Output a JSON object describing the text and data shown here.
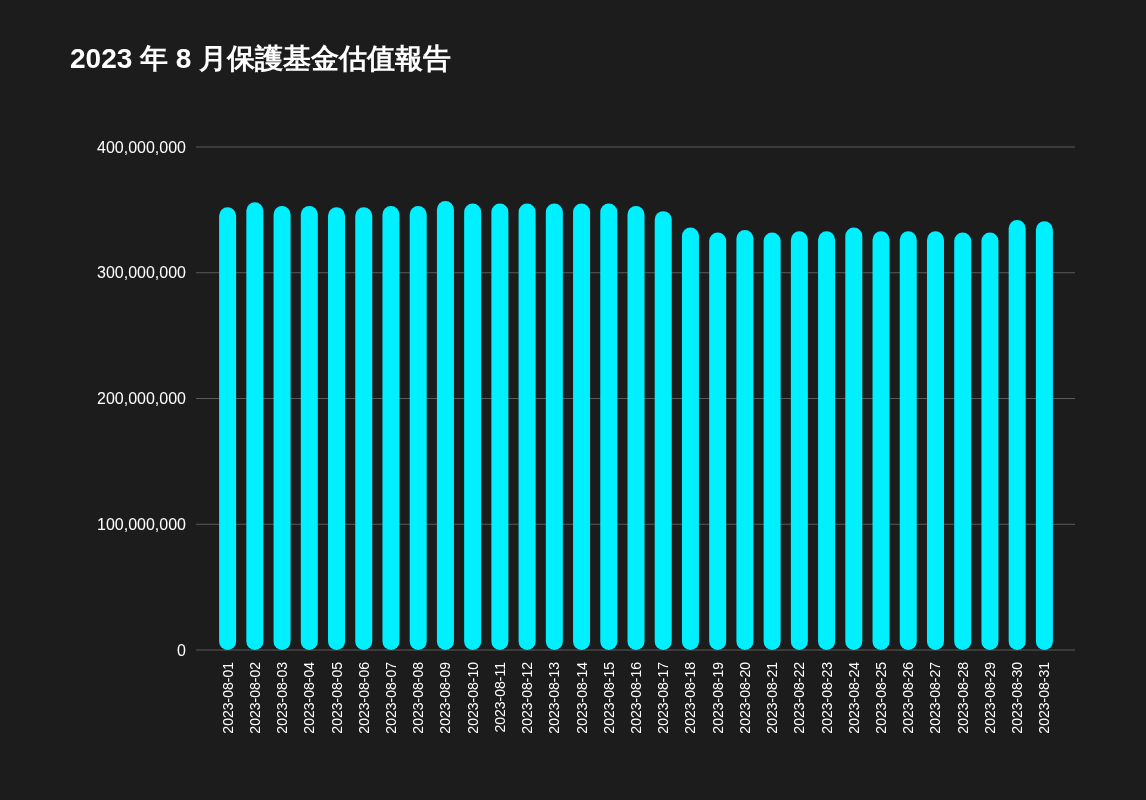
{
  "chart_data": {
    "type": "bar",
    "title": "2023 年 8 月保護基金估值報告",
    "categories": [
      "2023-08-01",
      "2023-08-02",
      "2023-08-03",
      "2023-08-04",
      "2023-08-05",
      "2023-08-06",
      "2023-08-07",
      "2023-08-08",
      "2023-08-09",
      "2023-08-10",
      "2023-08-11",
      "2023-08-12",
      "2023-08-13",
      "2023-08-14",
      "2023-08-15",
      "2023-08-16",
      "2023-08-17",
      "2023-08-18",
      "2023-08-19",
      "2023-08-20",
      "2023-08-21",
      "2023-08-22",
      "2023-08-23",
      "2023-08-24",
      "2023-08-25",
      "2023-08-26",
      "2023-08-27",
      "2023-08-28",
      "2023-08-29",
      "2023-08-30",
      "2023-08-31"
    ],
    "values": [
      352000000,
      356000000,
      353000000,
      353000000,
      352000000,
      352000000,
      353000000,
      353000000,
      357000000,
      355000000,
      355000000,
      355000000,
      355000000,
      355000000,
      355000000,
      353000000,
      349000000,
      336000000,
      332000000,
      334000000,
      332000000,
      333000000,
      333000000,
      336000000,
      333000000,
      333000000,
      333000000,
      332000000,
      332000000,
      342000000,
      341000000
    ],
    "color": "#00f0ff",
    "ylim": [
      0,
      400000000
    ],
    "yticks": [
      {
        "value": 0,
        "label": "0"
      },
      {
        "value": 100000000,
        "label": "100,000,000"
      },
      {
        "value": 200000000,
        "label": "200,000,000"
      },
      {
        "value": 300000000,
        "label": "300,000,000"
      },
      {
        "value": 400000000,
        "label": "400,000,000"
      }
    ],
    "grid": "y"
  }
}
